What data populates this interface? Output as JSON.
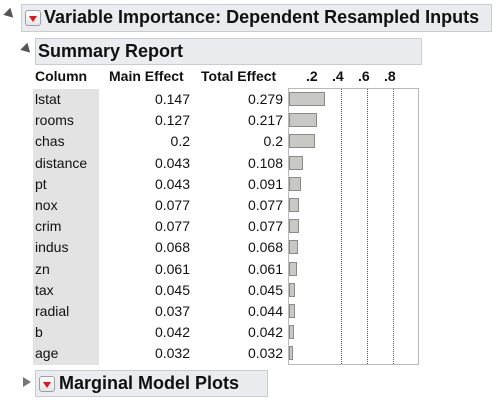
{
  "report": {
    "title": "Variable Importance: Dependent Resampled Inputs",
    "summary": {
      "title": "Summary Report",
      "columns": [
        "Column",
        "Main Effect",
        "Total Effect"
      ],
      "axis_ticks": [
        ".2",
        ".4",
        ".6",
        ".8"
      ],
      "rows": [
        {
          "column": "lstat",
          "main": "0.147",
          "total": "0.279"
        },
        {
          "column": "rooms",
          "main": "0.127",
          "total": "0.217"
        },
        {
          "column": "chas",
          "main": "0.2",
          "total": "0.2"
        },
        {
          "column": "distance",
          "main": "0.043",
          "total": "0.108"
        },
        {
          "column": "pt",
          "main": "0.043",
          "total": "0.091"
        },
        {
          "column": "nox",
          "main": "0.077",
          "total": "0.077"
        },
        {
          "column": "crim",
          "main": "0.077",
          "total": "0.077"
        },
        {
          "column": "indus",
          "main": "0.068",
          "total": "0.068"
        },
        {
          "column": "zn",
          "main": "0.061",
          "total": "0.061"
        },
        {
          "column": "tax",
          "main": "0.045",
          "total": "0.045"
        },
        {
          "column": "radial",
          "main": "0.037",
          "total": "0.044"
        },
        {
          "column": "b",
          "main": "0.042",
          "total": "0.042"
        },
        {
          "column": "age",
          "main": "0.032",
          "total": "0.032"
        }
      ]
    },
    "marginal_title": "Marginal Model Plots"
  },
  "colors": {
    "header_bg": "#eaecef",
    "name_column_bg": "#e3e3e3",
    "bar_fill": "#c8c8c4",
    "menu_triangle": "#cc1f1f"
  },
  "icons": [
    "disclosure-open-icon",
    "red-triangle-menu-icon",
    "disclosure-closed-icon"
  ]
}
